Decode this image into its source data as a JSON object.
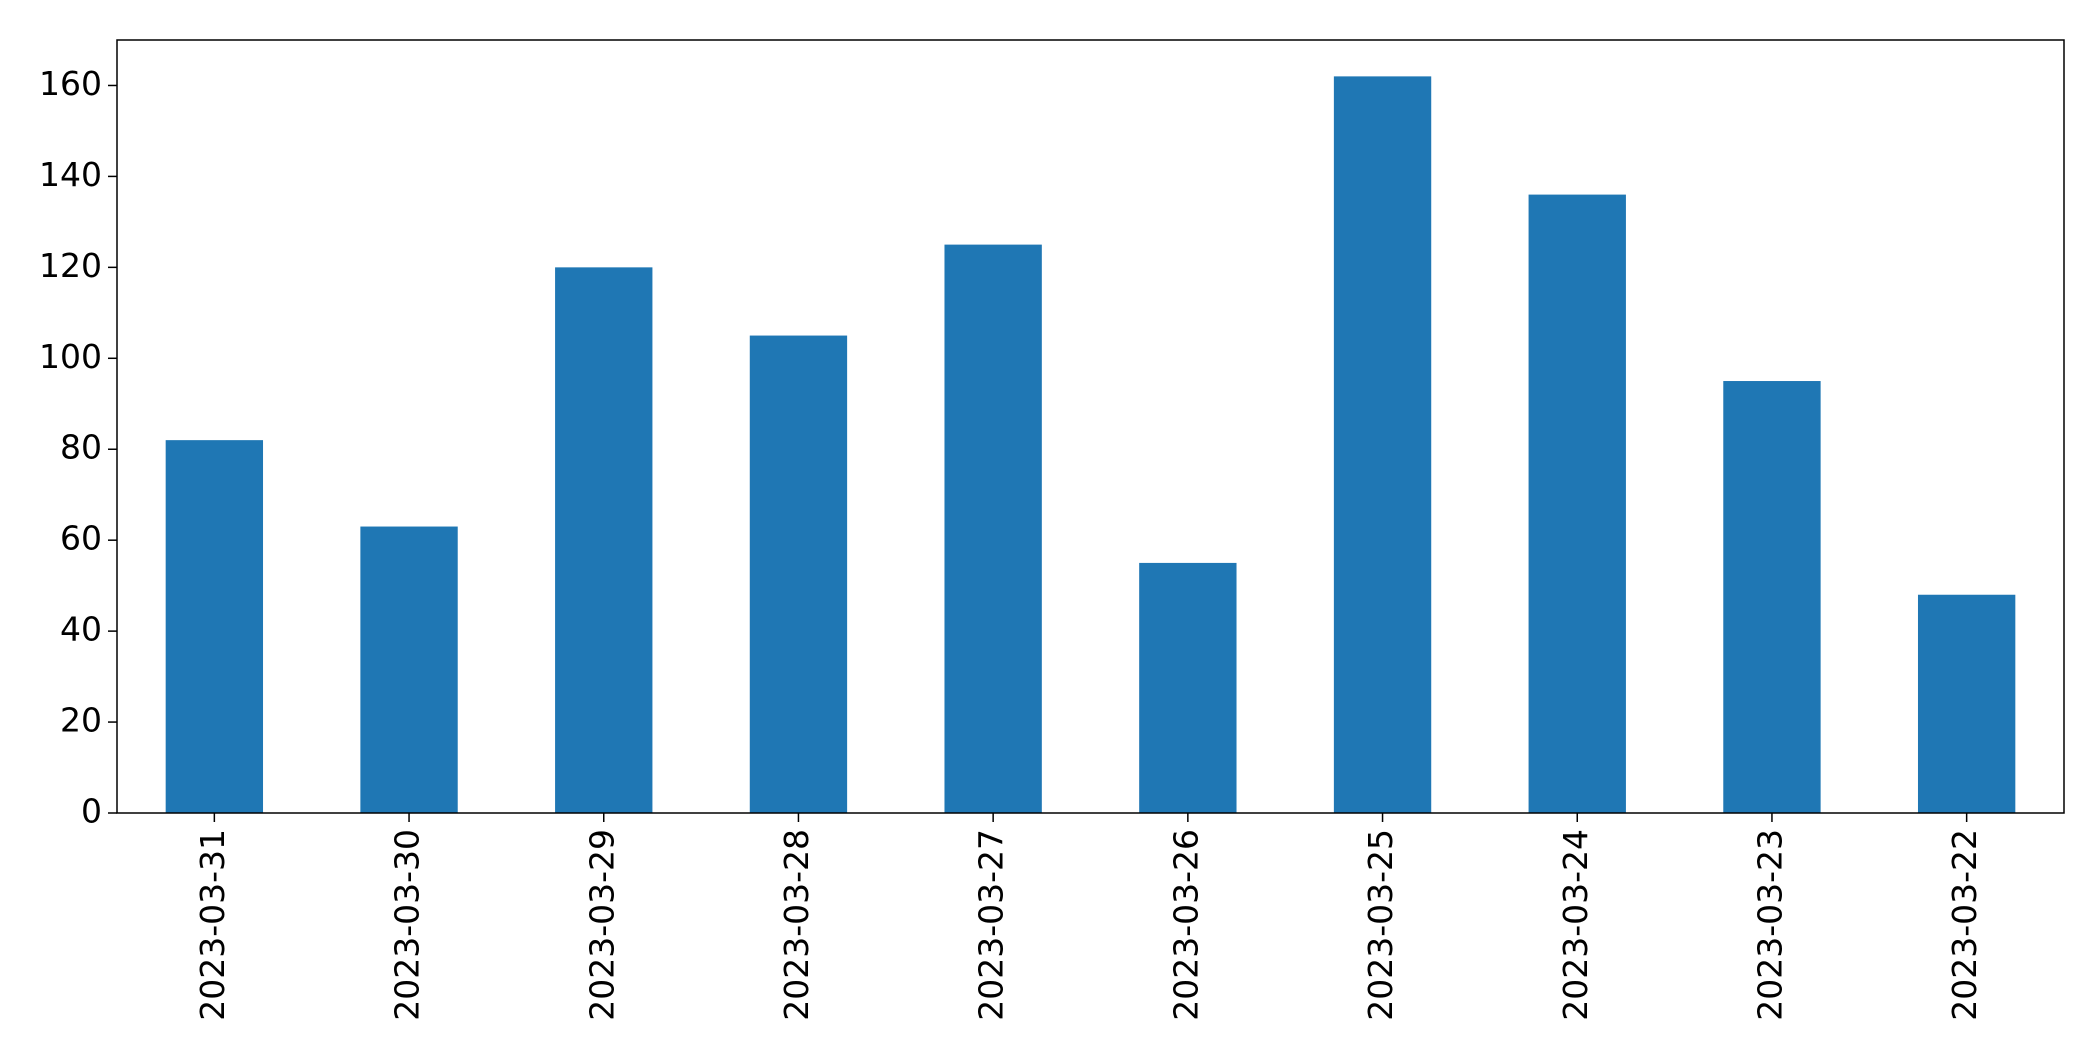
{
  "chart_data": {
    "type": "bar",
    "categories": [
      "2023-03-31",
      "2023-03-30",
      "2023-03-29",
      "2023-03-28",
      "2023-03-27",
      "2023-03-26",
      "2023-03-25",
      "2023-03-24",
      "2023-03-23",
      "2023-03-22"
    ],
    "values": [
      82,
      63,
      120,
      105,
      125,
      55,
      162,
      136,
      95,
      48
    ],
    "color": "#1f77b4",
    "ylim": [
      0,
      170
    ],
    "yticks": [
      0,
      20,
      40,
      60,
      80,
      100,
      120,
      140,
      160
    ],
    "grid": false
  }
}
